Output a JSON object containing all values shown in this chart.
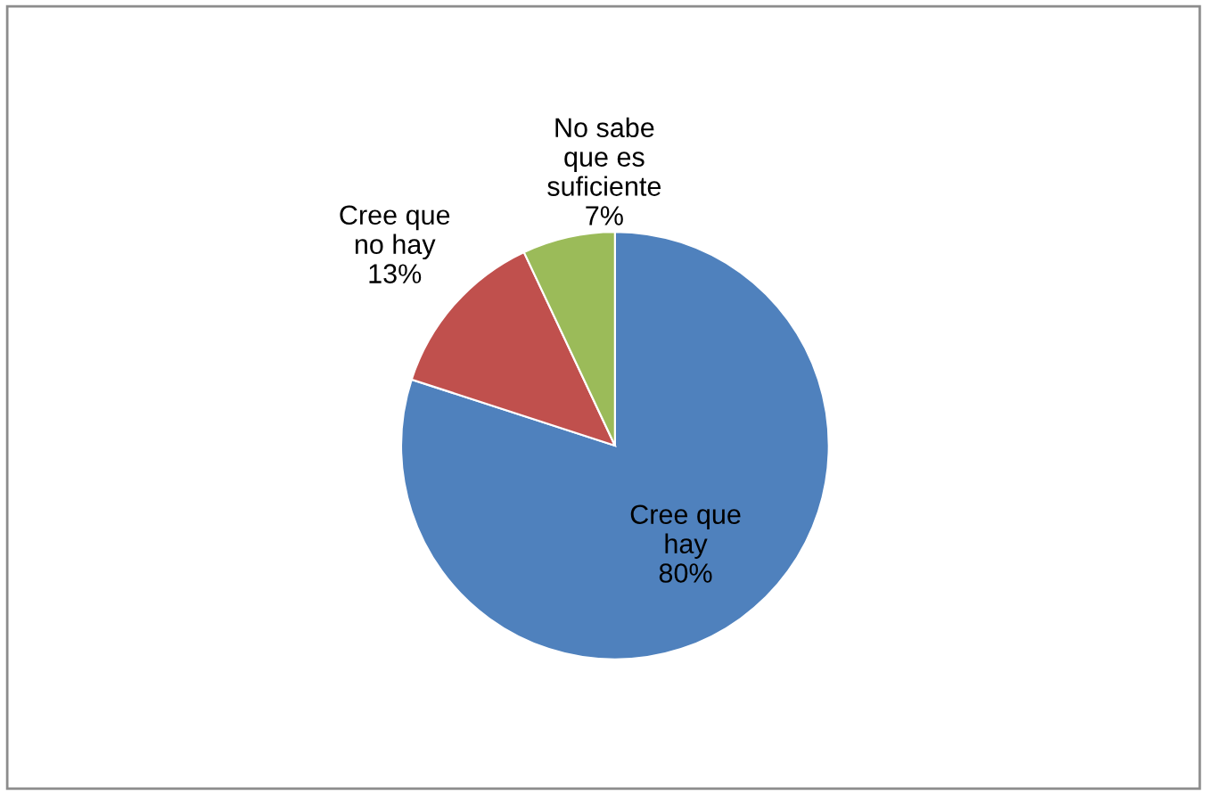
{
  "chart_data": {
    "type": "pie",
    "categories": [
      "Cree que\nhay",
      "Cree que\nno hay",
      "No sabe\nque es\nsuficiente"
    ],
    "values": [
      80,
      13,
      7
    ],
    "colors": [
      "#4f81bd",
      "#c0504d",
      "#9bbb59"
    ],
    "value_labels": [
      "80%",
      "13%",
      "7%"
    ],
    "legend": false
  }
}
